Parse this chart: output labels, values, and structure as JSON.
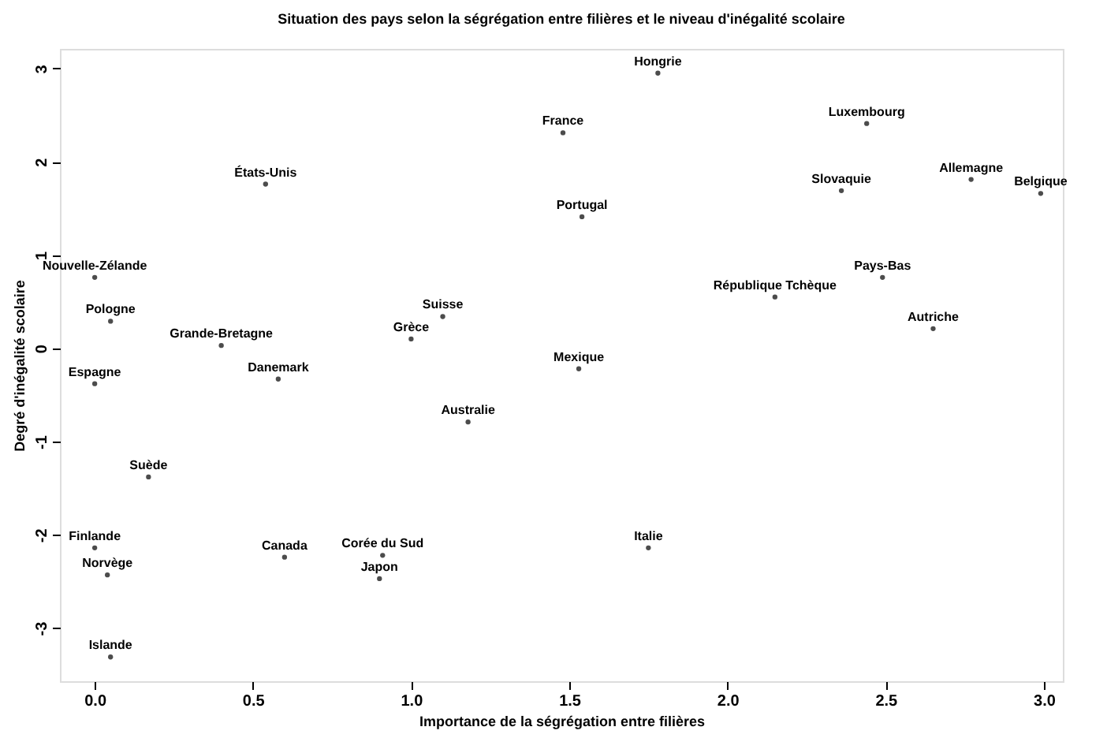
{
  "chart_data": {
    "type": "scatter",
    "title": "Situation des pays selon la ségrégation entre filières et le niveau d'inégalité scolaire",
    "xlabel": "Importance de la ségrégation entre filières",
    "ylabel": "Degré d'inégalité scolaire",
    "marker": "circle",
    "grid": false,
    "x": [
      1.78,
      1.48,
      2.44,
      0.54,
      2.36,
      2.77,
      2.99,
      1.54,
      0.0,
      2.49,
      2.15,
      2.65,
      0.05,
      0.4,
      1.1,
      1.0,
      0.0,
      0.58,
      1.53,
      1.18,
      0.17,
      0.0,
      0.04,
      0.6,
      0.91,
      0.9,
      1.75,
      0.05
    ],
    "values": [
      2.95,
      2.31,
      2.41,
      1.76,
      1.69,
      1.81,
      1.66,
      1.41,
      0.76,
      0.76,
      0.55,
      0.21,
      0.29,
      0.03,
      0.34,
      0.1,
      -0.38,
      -0.33,
      -0.22,
      -0.79,
      -1.38,
      -2.14,
      -2.43,
      -2.24,
      -2.22,
      -2.47,
      -2.14,
      -3.31
    ],
    "value_labels": [
      "Hongrie",
      "France",
      "Luxembourg",
      "États-Unis",
      "Slovaquie",
      "Allemagne",
      "Belgique",
      "Portugal",
      "Nouvelle-Zélande",
      "Pays-Bas",
      "République Tchèque",
      "Autriche",
      "Pologne",
      "Grande-Bretagne",
      "Suisse",
      "Grèce",
      "Espagne",
      "Danemark",
      "Mexique",
      "Australie",
      "Suède",
      "Finlande",
      "Norvège",
      "Canada",
      "Corée du Sud",
      "Japon",
      "Italie",
      "Islande"
    ],
    "xlim": [
      -0.11,
      3.06
    ],
    "ylim": [
      -3.57,
      3.21
    ],
    "xticks": [
      {
        "value": 0,
        "label": "0.0"
      },
      0.5,
      {
        "value": 1,
        "label": "1.0"
      },
      1.5,
      {
        "value": 2,
        "label": "2.0"
      },
      2.5,
      {
        "value": 3,
        "label": "3.0"
      }
    ],
    "yticks": [
      -3,
      -2,
      -1,
      0,
      1,
      2,
      3
    ]
  }
}
